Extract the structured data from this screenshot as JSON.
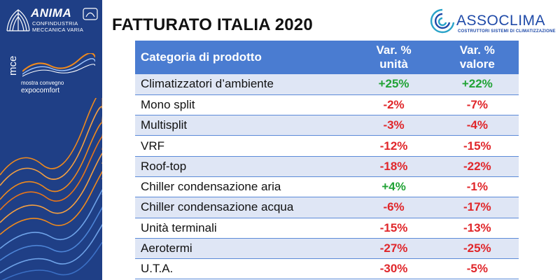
{
  "sidebar": {
    "anima_name": "ANIMA",
    "anima_sub1": "CONFINDUSTRIA",
    "anima_sub2": "MECCANICA VARIA",
    "mce_mark": "mce",
    "mce_line1": "mostra convegno",
    "mce_line2": "expocomfort"
  },
  "title": "FATTURATO ITALIA 2020",
  "assoclima": {
    "name": "ASSOCLIMA",
    "subtitle": "COSTRUTTORI SISTEMI DI CLIMATIZZAZIONE"
  },
  "table": {
    "header": {
      "category": "Categoria di prodotto",
      "units_line1": "Var. %",
      "units_line2": "unità",
      "value_line1": "Var. %",
      "value_line2": "valore"
    },
    "rows": [
      {
        "category": "Climatizzatori d’ambiente",
        "units": "+25%",
        "value": "+22%"
      },
      {
        "category": "Mono split",
        "units": "-2%",
        "value": "-7%"
      },
      {
        "category": "Multisplit",
        "units": "-3%",
        "value": "-4%"
      },
      {
        "category": "VRF",
        "units": "-12%",
        "value": "-15%"
      },
      {
        "category": "Roof-top",
        "units": "-18%",
        "value": "-22%"
      },
      {
        "category": "Chiller condensazione aria",
        "units": "+4%",
        "value": "-1%"
      },
      {
        "category": "Chiller condensazione acqua",
        "units": "-6%",
        "value": "-17%"
      },
      {
        "category": "Unità terminali",
        "units": "-15%",
        "value": "-13%"
      },
      {
        "category": "Aerotermi",
        "units": "-27%",
        "value": "-25%"
      },
      {
        "category": "U.T.A.",
        "units": "-30%",
        "value": "-5%"
      }
    ]
  },
  "colors": {
    "sidebar_bg": "#1f3f86",
    "header_bg": "#4a7cd1",
    "row_shade": "#dfe6f5",
    "negative": "#e0262a",
    "positive": "#21a336",
    "wave_orange": "#f08a1c"
  },
  "icons": [
    "anima-gear-emblem-icon",
    "mce-wave-icon",
    "assoclima-swirl-icon"
  ]
}
